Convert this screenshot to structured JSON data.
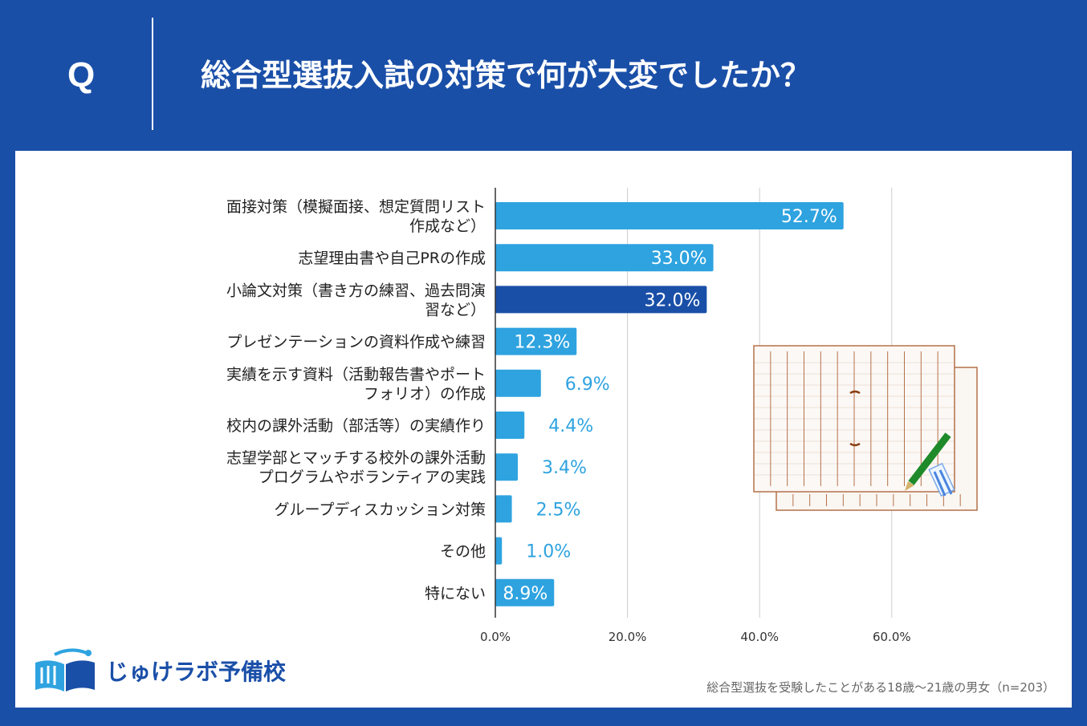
{
  "header": {
    "q_label": "Q",
    "title": "総合型選抜入試の対策で何が大変でしたか？"
  },
  "chart_data": {
    "type": "bar",
    "orientation": "horizontal",
    "title": "総合型選抜入試の対策で何が大変でしたか？",
    "categories": [
      [
        "面接対策（模擬面接、想定質問リスト",
        "作成など）"
      ],
      [
        "志望理由書や自己PRの作成"
      ],
      [
        "小論文対策（書き方の練習、過去問演",
        "習など）"
      ],
      [
        "プレゼンテーションの資料作成や練習"
      ],
      [
        "実績を示す資料（活動報告書やポート",
        "フォリオ）の作成"
      ],
      [
        "校内の課外活動（部活等）の実績作り"
      ],
      [
        "志望学部とマッチする校外の課外活動",
        "プログラムやボランティアの実践"
      ],
      [
        "グループディスカッション対策"
      ],
      [
        "その他"
      ],
      [
        "特にない"
      ]
    ],
    "values": [
      52.7,
      33.0,
      32.0,
      12.3,
      6.9,
      4.4,
      3.4,
      2.5,
      1.0,
      8.9
    ],
    "value_labels": [
      "52.7%",
      "33.0%",
      "32.0%",
      "12.3%",
      "6.9%",
      "4.4%",
      "3.4%",
      "2.5%",
      "1.0%",
      "8.9%"
    ],
    "highlight_index": 2,
    "xlim": [
      0,
      75
    ],
    "xticks": [
      0,
      20,
      40,
      60
    ],
    "xtick_labels": [
      "0.0%",
      "20.0%",
      "40.0%",
      "60.0%"
    ],
    "grid": true
  },
  "colors": {
    "background": "#1a4fa8",
    "bar": "#2ea3e0",
    "bar_highlight": "#1a4fa8",
    "label_inside": "#ffffff",
    "label_outside": "#2ea3e0",
    "grid": "#cccccc",
    "paper_line": "#b5714a",
    "pencil": "#1e8a2a"
  },
  "logo": {
    "icon": "open-book-icon",
    "text": "じゅけラボ予備校"
  },
  "footnote": "総合型選抜を受験したことがある18歳～21歳の男女（n=203）"
}
